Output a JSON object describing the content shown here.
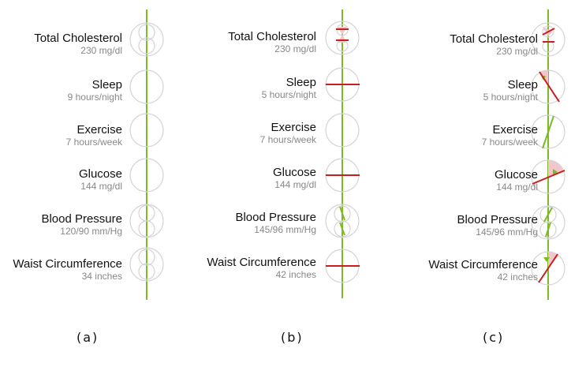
{
  "panels": [
    {
      "caption": "(a)",
      "metrics": [
        {
          "name": "Total Cholesterol",
          "value": "230 mg/dl"
        },
        {
          "name": "Sleep",
          "value": "9 hours/night"
        },
        {
          "name": "Exercise",
          "value": "7 hours/week"
        },
        {
          "name": "Glucose",
          "value": "144 mg/dl"
        },
        {
          "name": "Blood Pressure",
          "value": "120/90 mm/Hg"
        },
        {
          "name": "Waist Circumference",
          "value": "34 inches"
        }
      ]
    },
    {
      "caption": "(b)",
      "metrics": [
        {
          "name": "Total Cholesterol",
          "value": "230 mg/dl"
        },
        {
          "name": "Sleep",
          "value": "5 hours/night"
        },
        {
          "name": "Exercise",
          "value": "7 hours/week"
        },
        {
          "name": "Glucose",
          "value": "144 mg/dl"
        },
        {
          "name": "Blood Pressure",
          "value": "145/96 mm/Hg"
        },
        {
          "name": "Waist Circumference",
          "value": "42 inches"
        }
      ]
    },
    {
      "caption": "(c)",
      "metrics": [
        {
          "name": "Total Cholesterol",
          "value": "230 mg/dl"
        },
        {
          "name": "Sleep",
          "value": "5 hours/night"
        },
        {
          "name": "Exercise",
          "value": "7 hours/week"
        },
        {
          "name": "Glucose",
          "value": "144 mg/dl"
        },
        {
          "name": "Blood Pressure",
          "value": "145/96 mm/Hg"
        },
        {
          "name": "Waist Circumference",
          "value": "42 inches"
        }
      ]
    }
  ],
  "colors": {
    "good": "#7cbb22",
    "bad": "#c81e1e",
    "circle": "#d4d4d4",
    "wedge": "#f3c6cb"
  }
}
